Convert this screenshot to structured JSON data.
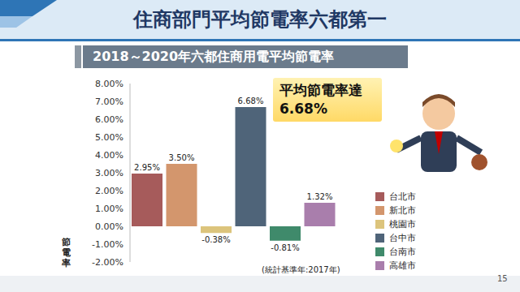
{
  "chart_data": {
    "type": "bar",
    "title": "住商部門平均節電率六都第一",
    "subtitle": "2018～2020年六都住商用電平均節電率",
    "annotations": [
      "平均節電率達",
      "6.68%"
    ],
    "y_label": "節電率",
    "note": "(統計基準年:2017年)",
    "page_number": "15",
    "categories": [
      "台北市",
      "新北市",
      "桃園市",
      "台中市",
      "台南市",
      "高雄市"
    ],
    "values": [
      2.95,
      3.5,
      -0.38,
      6.68,
      -0.81,
      1.32
    ],
    "value_labels": [
      "2.95%",
      "3.50%",
      "-0.38%",
      "6.68%",
      "-0.81%",
      "1.32%"
    ],
    "colors": [
      "#a65b5b",
      "#d3966d",
      "#dcc47c",
      "#4f6479",
      "#3f8a6b",
      "#a97eac"
    ],
    "ylim": [
      -2,
      8
    ],
    "yticks": [
      {
        "value": -2,
        "label": "-2.00%"
      },
      {
        "value": -1,
        "label": "-1.00%"
      },
      {
        "value": 0,
        "label": "0.00%"
      },
      {
        "value": 1,
        "label": "1.00%"
      },
      {
        "value": 2,
        "label": "2.00%"
      },
      {
        "value": 3,
        "label": "3.00%"
      },
      {
        "value": 4,
        "label": "4.00%"
      },
      {
        "value": 5,
        "label": "5.00%"
      },
      {
        "value": 6,
        "label": "6.00%"
      },
      {
        "value": 7,
        "label": "7.00%"
      },
      {
        "value": 8,
        "label": "8.00%"
      }
    ],
    "grid": false,
    "data_labels": true,
    "tick_labels": "y",
    "legend": "right"
  }
}
